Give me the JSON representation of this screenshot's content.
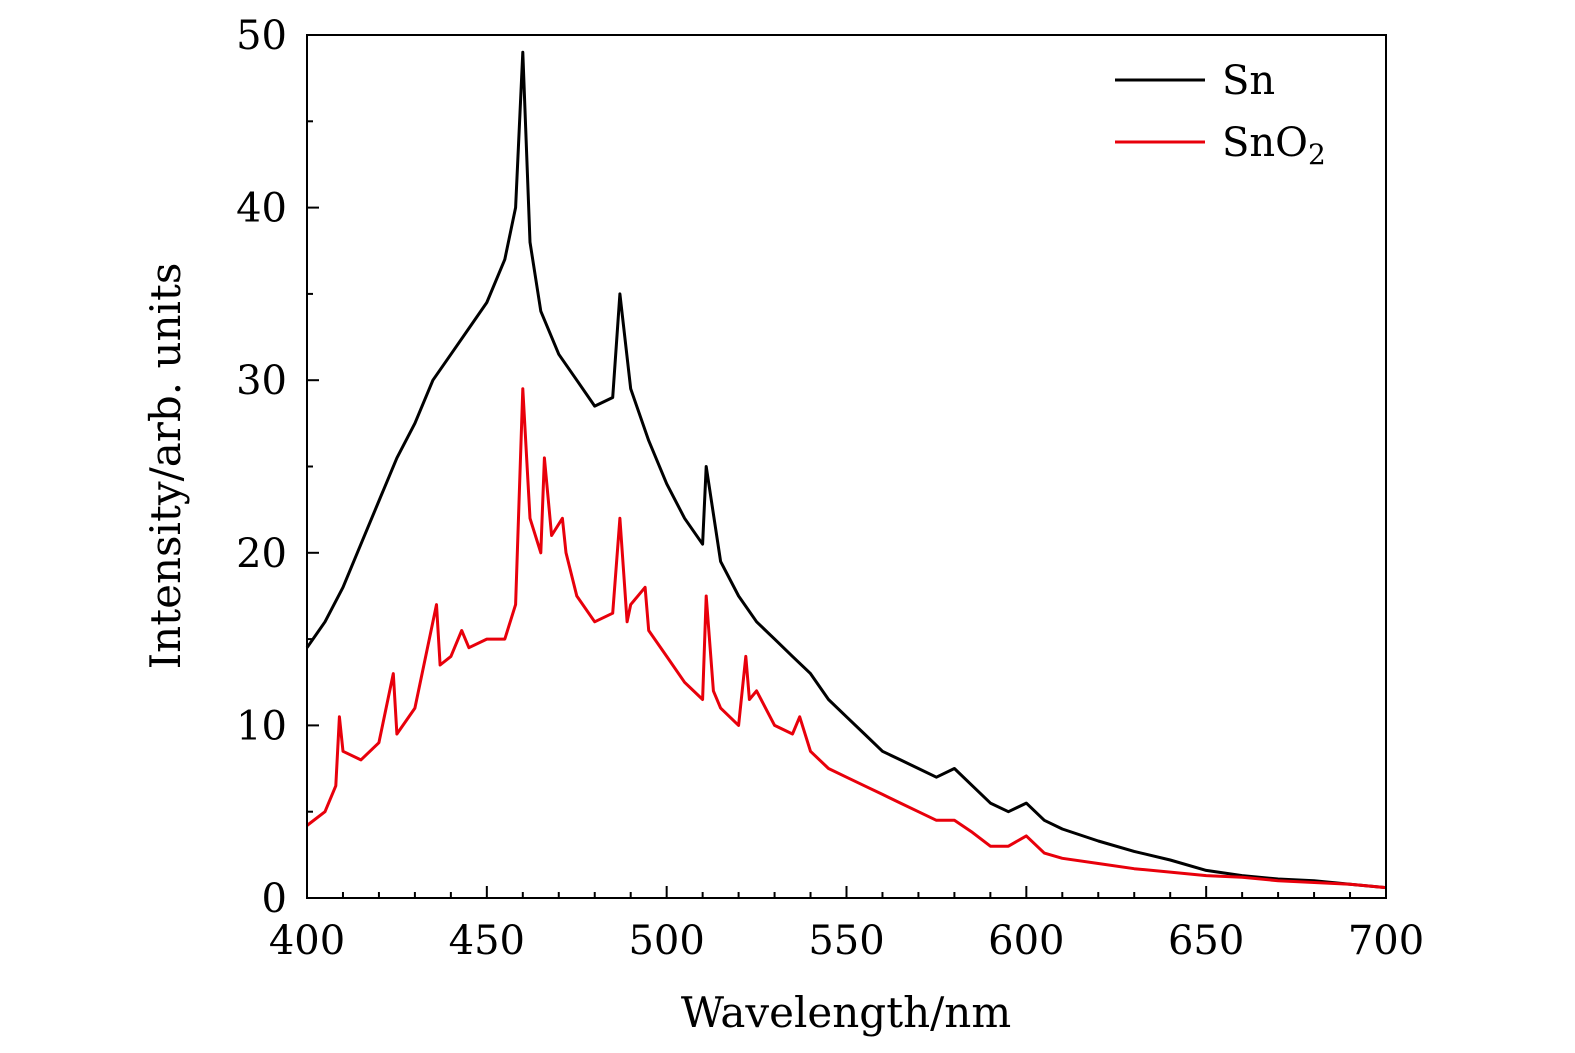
{
  "chart_data": {
    "type": "line",
    "title": "",
    "xlabel": "Wavelength/nm",
    "ylabel": "Intensity/arb. units",
    "xlim": [
      400,
      700
    ],
    "ylim": [
      0,
      50
    ],
    "x_ticks": [
      400,
      450,
      500,
      550,
      600,
      650,
      700
    ],
    "x_tick_labels": [
      "400",
      "450",
      "500",
      "550",
      "600",
      "650",
      "700"
    ],
    "y_ticks": [
      0,
      10,
      20,
      30,
      40,
      50
    ],
    "y_tick_labels": [
      "0",
      "10",
      "20",
      "30",
      "40",
      "50"
    ],
    "grid": false,
    "legend_position": "top-right",
    "series": [
      {
        "name": "Sn",
        "color": "#000000",
        "x": [
          400,
          405,
          410,
          415,
          420,
          425,
          430,
          435,
          440,
          445,
          450,
          455,
          458,
          460,
          462,
          465,
          470,
          475,
          480,
          485,
          487,
          490,
          495,
          500,
          505,
          510,
          511,
          515,
          520,
          525,
          530,
          535,
          540,
          545,
          550,
          555,
          560,
          565,
          570,
          575,
          580,
          585,
          590,
          595,
          600,
          605,
          610,
          620,
          630,
          640,
          650,
          660,
          670,
          680,
          690,
          700
        ],
        "y": [
          14.5,
          16,
          18,
          20.5,
          23,
          25.5,
          27.5,
          30,
          31.5,
          33,
          34.5,
          37,
          40,
          49,
          38,
          34,
          31.5,
          30,
          28.5,
          29,
          35,
          29.5,
          26.5,
          24,
          22,
          20.5,
          25,
          19.5,
          17.5,
          16,
          15,
          14,
          13,
          11.5,
          10.5,
          9.5,
          8.5,
          8,
          7.5,
          7,
          7.5,
          6.5,
          5.5,
          5,
          5.5,
          4.5,
          4,
          3.3,
          2.7,
          2.2,
          1.6,
          1.3,
          1.1,
          1.0,
          0.8,
          0.6
        ]
      },
      {
        "name": "SnO2",
        "color": "#e8000b",
        "x": [
          400,
          405,
          408,
          409,
          410,
          415,
          420,
          424,
          425,
          430,
          436,
          437,
          440,
          443,
          445,
          450,
          455,
          458,
          460,
          462,
          465,
          466,
          468,
          471,
          472,
          475,
          480,
          485,
          487,
          489,
          490,
          494,
          495,
          500,
          505,
          510,
          511,
          513,
          515,
          520,
          522,
          523,
          525,
          530,
          535,
          537,
          540,
          545,
          550,
          555,
          560,
          565,
          570,
          575,
          580,
          585,
          590,
          595,
          600,
          602,
          605,
          610,
          620,
          630,
          640,
          650,
          660,
          670,
          680,
          690,
          700
        ],
        "y": [
          4.2,
          5,
          6.5,
          10.5,
          8.5,
          8,
          9,
          13,
          9.5,
          11,
          17,
          13.5,
          14,
          15.5,
          14.5,
          15,
          15,
          17,
          29.5,
          22,
          20,
          25.5,
          21,
          22,
          20,
          17.5,
          16,
          16.5,
          22,
          16,
          17,
          18,
          15.5,
          14,
          12.5,
          11.5,
          17.5,
          12,
          11,
          10,
          14,
          11.5,
          12,
          10,
          9.5,
          10.5,
          8.5,
          7.5,
          7,
          6.5,
          6,
          5.5,
          5,
          4.5,
          4.5,
          3.8,
          3,
          3,
          3.6,
          3.2,
          2.6,
          2.3,
          2,
          1.7,
          1.5,
          1.3,
          1.2,
          1.0,
          0.9,
          0.8,
          0.6
        ]
      }
    ]
  },
  "legend": {
    "items": [
      {
        "label": "Sn",
        "color": "#000000"
      },
      {
        "label": "SnO",
        "subscript": "2",
        "color": "#e8000b"
      }
    ]
  }
}
